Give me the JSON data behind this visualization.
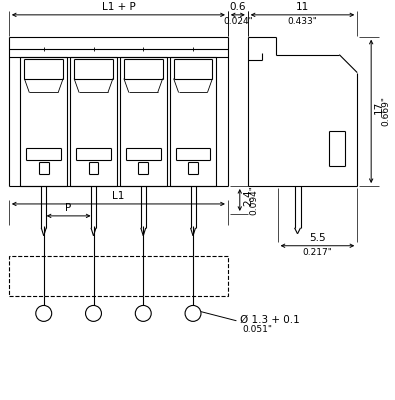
{
  "bg_color": "#ffffff",
  "line_color": "#000000",
  "font_size": 7.5,
  "small_font": 6.5,
  "dim_L1P_label": "L1 + P",
  "dim_06_label": "0.6",
  "dim_06_inch": "0.024\"",
  "dim_11_label": "11",
  "dim_11_inch": "0.433\"",
  "dim_24_label": "2.4",
  "dim_24_inch": "0.094\"",
  "dim_17_label": "17",
  "dim_17_inch": "0.669\"",
  "dim_55_label": "5.5",
  "dim_55_inch": "0.217\"",
  "dim_L1_label": "L1",
  "dim_P_label": "P",
  "dim_hole_label": "Ø 1.3 + 0.1",
  "dim_hole_inch": "0.051\""
}
